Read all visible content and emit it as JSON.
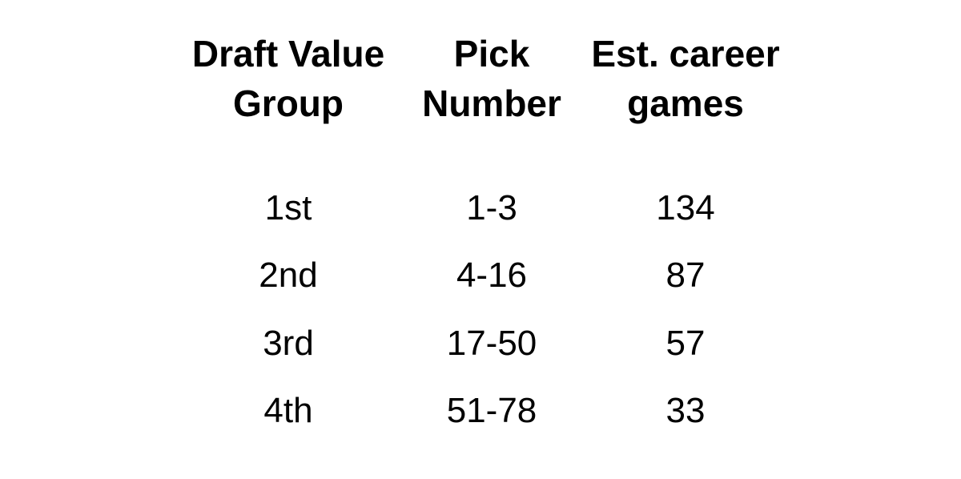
{
  "chart_data": {
    "type": "table",
    "title": "",
    "columns": [
      {
        "line1": "Draft Value",
        "line2": "Group"
      },
      {
        "line1": "Pick",
        "line2": "Number"
      },
      {
        "line1": "Est. career",
        "line2": "games"
      }
    ],
    "rows": [
      [
        "1st",
        "1-3",
        "134"
      ],
      [
        "2nd",
        "4-16",
        "87"
      ],
      [
        "3rd",
        "17-50",
        "57"
      ],
      [
        "4th",
        "51-78",
        "33"
      ]
    ]
  }
}
